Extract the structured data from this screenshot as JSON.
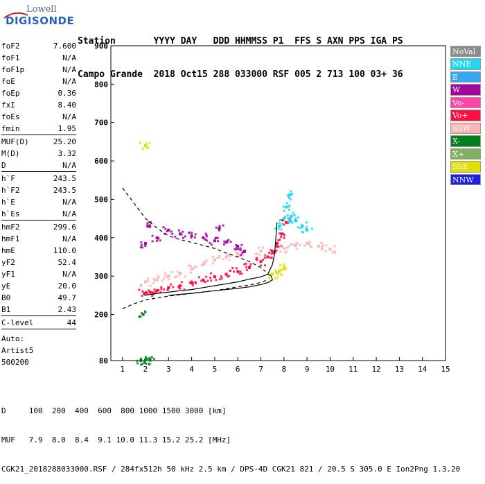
{
  "logo": {
    "line1": "Lowell",
    "line2": "DIGISONDE"
  },
  "header": {
    "line1": "Station       YYYY DAY   DDD HHMMSS P1  FFS S AXN PPS IGA PS",
    "line2": "Campo Grande  2018 Oct15 288 033000 RSF 005 2 713 100 03+ 36"
  },
  "params": [
    [
      [
        "foF2",
        "7.600"
      ],
      [
        "foF1",
        "N/A"
      ],
      [
        "foF1p",
        "N/A"
      ],
      [
        "foE",
        "N/A"
      ],
      [
        "foEp",
        "0.36"
      ],
      [
        "fxI",
        "8.40"
      ],
      [
        "foEs",
        "N/A"
      ],
      [
        "fmin",
        "1.95"
      ]
    ],
    [
      [
        "MUF(D)",
        "25.20"
      ],
      [
        "M(D)",
        "3.32"
      ],
      [
        "D",
        "N/A"
      ]
    ],
    [
      [
        "h`F",
        "243.5"
      ],
      [
        "h`F2",
        "243.5"
      ],
      [
        "h`E",
        "N/A"
      ],
      [
        "h`Es",
        "N/A"
      ]
    ],
    [
      [
        "hmF2",
        "299.6"
      ],
      [
        "hmF1",
        "N/A"
      ],
      [
        "hmE",
        "110.0"
      ],
      [
        "yF2",
        "52.4"
      ],
      [
        "yF1",
        "N/A"
      ],
      [
        "yE",
        "20.0"
      ],
      [
        "B0",
        "49.7"
      ],
      [
        "B1",
        "2.43"
      ]
    ],
    [
      [
        "C-level",
        "44"
      ]
    ]
  ],
  "auto": {
    "l1": "Auto:",
    "l2": "Artist5",
    "l3": "500200"
  },
  "legend": [
    {
      "label": "NoVal",
      "color": "#8c8c8c"
    },
    {
      "label": "NNE",
      "color": "#22d6f0"
    },
    {
      "label": "E",
      "color": "#3aa6f0"
    },
    {
      "label": "W",
      "color": "#a0089c"
    },
    {
      "label": "Vo-",
      "color": "#ff44aa"
    },
    {
      "label": "Vo+",
      "color": "#ff1040"
    },
    {
      "label": "SSW",
      "color": "#ffb4b4"
    },
    {
      "label": "X-",
      "color": "#00801c"
    },
    {
      "label": "X+",
      "color": "#80b060"
    },
    {
      "label": "SSE",
      "color": "#e0e000"
    },
    {
      "label": "NNW",
      "color": "#2020e0"
    }
  ],
  "footer": {
    "l1": "D     100  200  400  600  800 1000 1500 3000 [km]",
    "l2": "MUF   7.9  8.0  8.4  9.1 10.0 11.3 15.2 25.2 [MHz]",
    "l3": "CGK21_2018288033000.RSF / 284fx512h 50 kHz 2.5 km / DPS-4D CGK21 821 / 20.5 S 305.0 E Ion2Png 1.3.20"
  },
  "chart_data": {
    "type": "scatter",
    "xlim": [
      0.5,
      15
    ],
    "ylim": [
      80,
      900
    ],
    "xticks": [
      1,
      2,
      3,
      4,
      5,
      6,
      7,
      8,
      9,
      10,
      11,
      12,
      13,
      14,
      15
    ],
    "yticks": [
      80,
      200,
      300,
      400,
      500,
      600,
      700,
      800,
      900
    ],
    "grid": false,
    "series": [
      {
        "name": "Vo+",
        "color": "#ff1040",
        "points": [
          [
            1.95,
            255
          ],
          [
            2.2,
            258
          ],
          [
            2.5,
            262
          ],
          [
            3,
            270
          ],
          [
            3.5,
            275
          ],
          [
            4,
            282
          ],
          [
            4.5,
            290
          ],
          [
            5,
            298
          ],
          [
            5.5,
            305
          ],
          [
            6,
            312
          ],
          [
            6.5,
            322
          ],
          [
            7,
            338
          ],
          [
            7.3,
            350
          ],
          [
            7.5,
            365
          ],
          [
            7.7,
            385
          ],
          [
            7.9,
            410
          ],
          [
            8.1,
            440
          ]
        ]
      },
      {
        "name": "SSW",
        "color": "#ffb4b4",
        "points": [
          [
            2,
            285
          ],
          [
            2.5,
            290
          ],
          [
            3,
            300
          ],
          [
            3.5,
            308
          ],
          [
            4,
            318
          ],
          [
            4.5,
            330
          ],
          [
            5,
            342
          ],
          [
            5.5,
            350
          ],
          [
            6,
            358
          ],
          [
            7,
            365
          ],
          [
            8,
            372
          ],
          [
            8.5,
            380
          ],
          [
            9,
            385
          ],
          [
            9.5,
            378
          ],
          [
            10,
            370
          ]
        ]
      },
      {
        "name": "W",
        "color": "#a0089c",
        "points": [
          [
            2,
            385
          ],
          [
            2.1,
            430
          ],
          [
            2.5,
            400
          ],
          [
            3,
            420
          ],
          [
            3.5,
            410
          ],
          [
            4,
            405
          ],
          [
            4.5,
            400
          ],
          [
            5,
            392
          ],
          [
            5.2,
            425
          ],
          [
            5.5,
            388
          ],
          [
            6,
            378
          ],
          [
            6.3,
            365
          ]
        ]
      },
      {
        "name": "NNE",
        "color": "#22d6f0",
        "points": [
          [
            7.8,
            430
          ],
          [
            8,
            450
          ],
          [
            8.1,
            480
          ],
          [
            8.2,
            510
          ],
          [
            8.3,
            455
          ],
          [
            8.5,
            445
          ],
          [
            8.8,
            430
          ],
          [
            9,
            420
          ]
        ]
      },
      {
        "name": "SSE",
        "color": "#e0e000",
        "points": [
          [
            2,
            640
          ],
          [
            7.5,
            305
          ],
          [
            7.8,
            312
          ],
          [
            8,
            320
          ]
        ]
      },
      {
        "name": "X-",
        "color": "#00801c",
        "points": [
          [
            1.8,
            80
          ],
          [
            2,
            82
          ],
          [
            2.2,
            81
          ],
          [
            1.9,
            200
          ]
        ]
      }
    ],
    "curves": [
      {
        "name": "profile-upper",
        "style": "dashed",
        "points": [
          [
            1,
            530
          ],
          [
            1.5,
            490
          ],
          [
            2,
            450
          ],
          [
            2.5,
            425
          ],
          [
            3,
            405
          ],
          [
            3.5,
            395
          ],
          [
            4,
            388
          ],
          [
            4.5,
            380
          ],
          [
            5,
            372
          ],
          [
            5.5,
            360
          ],
          [
            6,
            350
          ],
          [
            6.5,
            338
          ],
          [
            7,
            322
          ],
          [
            7.2,
            312
          ]
        ]
      },
      {
        "name": "profile-lower",
        "style": "dashed",
        "points": [
          [
            1,
            215
          ],
          [
            1.5,
            228
          ],
          [
            2,
            238
          ],
          [
            3,
            248
          ],
          [
            4,
            255
          ],
          [
            5,
            262
          ],
          [
            6,
            272
          ],
          [
            6.8,
            280
          ],
          [
            7.3,
            290
          ]
        ]
      },
      {
        "name": "trace",
        "style": "solid",
        "points": [
          [
            1.95,
            250
          ],
          [
            2.5,
            255
          ],
          [
            3,
            258
          ],
          [
            3.5,
            262
          ],
          [
            4,
            265
          ],
          [
            4.5,
            270
          ],
          [
            5,
            275
          ],
          [
            5.5,
            280
          ],
          [
            6,
            285
          ],
          [
            6.5,
            292
          ],
          [
            7,
            298
          ],
          [
            7.3,
            305
          ],
          [
            7.5,
            330
          ],
          [
            7.6,
            360
          ],
          [
            7.65,
            400
          ],
          [
            7.7,
            440
          ]
        ]
      },
      {
        "name": "trace-lower",
        "style": "solid",
        "points": [
          [
            3,
            250
          ],
          [
            4,
            255
          ],
          [
            5,
            262
          ],
          [
            6,
            268
          ],
          [
            6.5,
            272
          ],
          [
            7,
            278
          ],
          [
            7.3,
            283
          ],
          [
            7.5,
            290
          ],
          [
            7.45,
            300
          ],
          [
            7.3,
            305
          ]
        ]
      }
    ]
  }
}
